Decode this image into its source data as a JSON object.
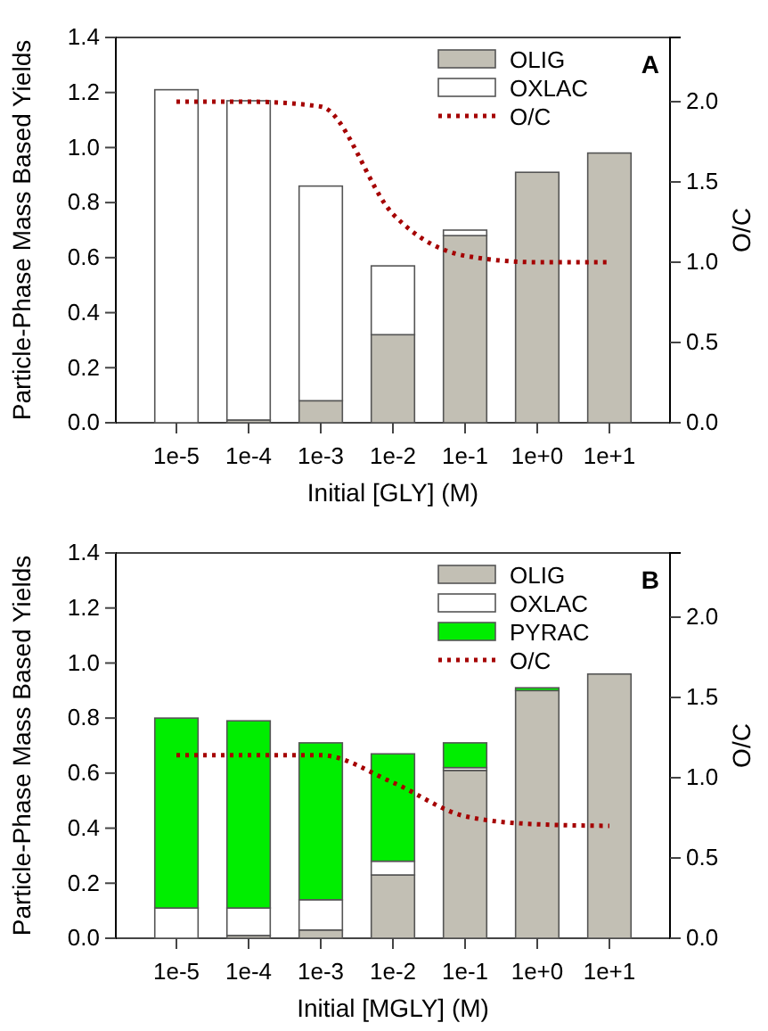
{
  "chart_data": [
    {
      "type": "bar",
      "stacked": true,
      "xlabel": "Initial [GLY] (M)",
      "ylabel": "Particle-Phase Mass Based Yields",
      "y2label": "O/C",
      "annotations": [
        "A"
      ],
      "categories": [
        "1e-5",
        "1e-4",
        "1e-3",
        "1e-2",
        "1e-1",
        "1e+0",
        "1e+1"
      ],
      "series": [
        {
          "name": "OLIG",
          "color": "#c2bfb4",
          "values": [
            0,
            0.01,
            0.08,
            0.32,
            0.68,
            0.91,
            0.98
          ]
        },
        {
          "name": "OXLAC",
          "color": "#ffffff",
          "values": [
            1.21,
            1.16,
            0.78,
            0.25,
            0.02,
            0,
            0
          ]
        },
        {
          "name": "O/C",
          "type": "line",
          "axis": "y2",
          "color": "#a50000",
          "values": [
            2.0,
            2.0,
            1.97,
            1.3,
            1.04,
            1.0,
            1.0
          ]
        }
      ],
      "ylim": [
        0,
        1.4
      ],
      "yticks": [
        {
          "value": 0,
          "label": "0.0"
        },
        {
          "value": 0.2,
          "label": "0.2"
        },
        {
          "value": 0.4,
          "label": "0.4"
        },
        {
          "value": 0.6,
          "label": "0.6"
        },
        {
          "value": 0.8,
          "label": "0.8"
        },
        {
          "value": 1.0,
          "label": "1.0"
        },
        {
          "value": 1.2,
          "label": "1.2"
        },
        {
          "value": 1.4,
          "label": "1.4"
        }
      ],
      "y2lim": [
        0,
        2.4
      ],
      "y2ticks": [
        {
          "value": 0,
          "label": "0.0"
        },
        {
          "value": 0.5,
          "label": "0.5"
        },
        {
          "value": 1.0,
          "label": "1.0"
        },
        {
          "value": 1.5,
          "label": "1.5"
        },
        {
          "value": 2.0,
          "label": "2.0"
        }
      ],
      "legend": "top right",
      "grid": false,
      "line_style": "dotted"
    },
    {
      "type": "bar",
      "stacked": true,
      "xlabel": "Initial [MGLY] (M)",
      "ylabel": "Particle-Phase Mass Based Yields",
      "y2label": "O/C",
      "annotations": [
        "B"
      ],
      "categories": [
        "1e-5",
        "1e-4",
        "1e-3",
        "1e-2",
        "1e-1",
        "1e+0",
        "1e+1"
      ],
      "series": [
        {
          "name": "OLIG",
          "color": "#c2bfb4",
          "values": [
            0,
            0.01,
            0.03,
            0.23,
            0.61,
            0.9,
            0.96
          ]
        },
        {
          "name": "OXLAC",
          "color": "#ffffff",
          "values": [
            0.11,
            0.1,
            0.11,
            0.05,
            0.01,
            0,
            0
          ]
        },
        {
          "name": "PYRAC",
          "color": "#00ee00",
          "values": [
            0.69,
            0.68,
            0.57,
            0.39,
            0.09,
            0.01,
            0
          ]
        },
        {
          "name": "O/C",
          "type": "line",
          "axis": "y2",
          "color": "#a50000",
          "values": [
            1.14,
            1.14,
            1.14,
            0.97,
            0.76,
            0.71,
            0.7
          ]
        }
      ],
      "ylim": [
        0,
        1.4
      ],
      "yticks": [
        {
          "value": 0,
          "label": "0.0"
        },
        {
          "value": 0.2,
          "label": "0.2"
        },
        {
          "value": 0.4,
          "label": "0.4"
        },
        {
          "value": 0.6,
          "label": "0.6"
        },
        {
          "value": 0.8,
          "label": "0.8"
        },
        {
          "value": 1.0,
          "label": "1.0"
        },
        {
          "value": 1.2,
          "label": "1.2"
        },
        {
          "value": 1.4,
          "label": "1.4"
        }
      ],
      "y2lim": [
        0,
        2.4
      ],
      "y2ticks": [
        {
          "value": 0,
          "label": "0.0"
        },
        {
          "value": 0.5,
          "label": "0.5"
        },
        {
          "value": 1.0,
          "label": "1.0"
        },
        {
          "value": 1.5,
          "label": "1.5"
        },
        {
          "value": 2.0,
          "label": "2.0"
        }
      ],
      "legend": "top right",
      "grid": false,
      "line_style": "dotted"
    }
  ]
}
